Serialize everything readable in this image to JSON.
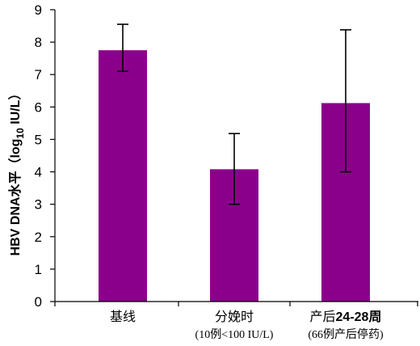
{
  "chart_data": {
    "type": "bar",
    "categories": [
      {
        "label_main": "基线",
        "label_suffix": "",
        "label_sub": ""
      },
      {
        "label_main": "分娩时",
        "label_suffix": "",
        "label_sub": "(10例<100 IU/L)"
      },
      {
        "label_main": "产后",
        "label_suffix": "24-28周",
        "label_sub": "(66例产后停药)"
      }
    ],
    "values": [
      7.75,
      4.08,
      6.12
    ],
    "error_low": [
      7.1,
      3.0,
      4.0
    ],
    "error_high": [
      8.55,
      5.18,
      8.38
    ],
    "bar_color": "#8B008B",
    "ylim": [
      0,
      9
    ],
    "yticks": [
      0,
      1,
      2,
      3,
      4,
      5,
      6,
      7,
      8,
      9
    ],
    "ylabel": {
      "prefix": "HBV DNA水平（log",
      "subscript": "10",
      "suffix": " IU/L）"
    },
    "grid": false,
    "legend": "none"
  }
}
